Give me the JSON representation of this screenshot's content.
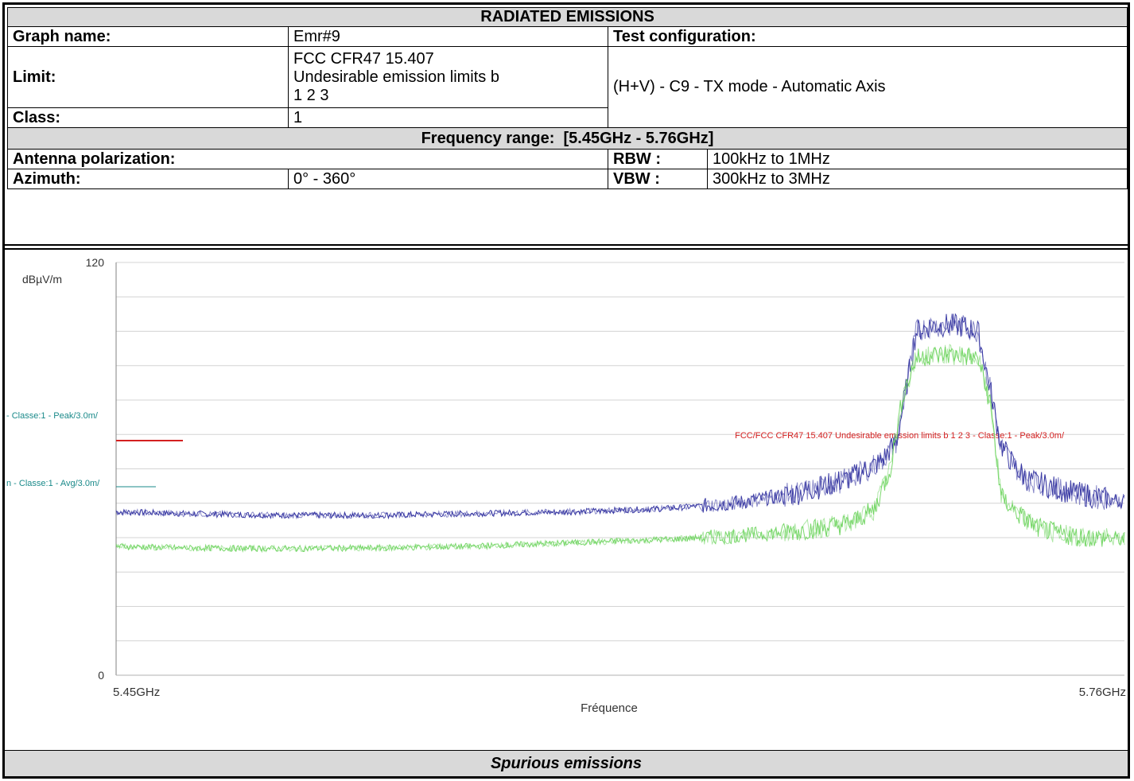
{
  "header": {
    "title": "RADIATED EMISSIONS",
    "graph_name_label": "Graph name:",
    "graph_name_value": "Emr#9",
    "test_config_label": "Test configuration:",
    "limit_label": "Limit:",
    "limit_value_lines": [
      "FCC CFR47 15.407",
      "Undesirable emission limits b",
      "1 2 3"
    ],
    "test_config_value": "(H+V) - C9 - TX mode - Automatic Axis",
    "class_label": "Class:",
    "class_value": "1",
    "freq_range_label": "Frequency range:",
    "freq_range_value": "[5.45GHz - 5.76GHz]",
    "antenna_label": "Antenna polarization:",
    "rbw_label": "RBW :",
    "rbw_value": "100kHz to 1MHz",
    "azimuth_label": "Azimuth:",
    "azimuth_value": "0° - 360°",
    "vbw_label": "VBW :",
    "vbw_value": "300kHz to 3MHz"
  },
  "footer": {
    "caption": "Spurious emissions"
  },
  "chart_data": {
    "type": "line",
    "title": "",
    "xlabel": "Fréquence",
    "ylabel": "dBµV/m",
    "xlim": [
      5.45,
      5.76
    ],
    "ylim": [
      0,
      120
    ],
    "x_tick_labels": [
      "5.45GHz",
      "5.76GHz"
    ],
    "y_tick_labels": [
      "120",
      "0"
    ],
    "grid": true,
    "limit_lines": [
      {
        "label": "FCC/FCC CFR47 15.407 Undesirable emission limits b 1 2 3 - Classe:1 - Peak/3.0m/",
        "left_label": "- Classe:1 - Peak/3.0m/",
        "value": 68.2,
        "color": "#d42020"
      },
      {
        "label": "",
        "left_label": "n - Classe:1 - Avg/3.0m/",
        "value": 54.0,
        "color": "#1a8a8a"
      }
    ],
    "series": [
      {
        "role": "peak",
        "color": "#2a2a9c",
        "x": [
          5.45,
          5.47,
          5.5,
          5.53,
          5.56,
          5.59,
          5.62,
          5.64,
          5.66,
          5.675,
          5.685,
          5.69,
          5.693,
          5.696,
          5.7,
          5.705,
          5.71,
          5.715,
          5.719,
          5.722,
          5.726,
          5.73,
          5.74,
          5.75,
          5.76
        ],
        "values": [
          47.5,
          47.0,
          46.5,
          46.5,
          47.0,
          47.5,
          48.5,
          50.0,
          53.0,
          57.0,
          62.0,
          68.0,
          84.0,
          100.0,
          101.5,
          101.8,
          101.5,
          100.0,
          82.0,
          67.0,
          61.0,
          57.0,
          54.0,
          52.0,
          50.5
        ]
      },
      {
        "role": "average",
        "color": "#6cd45c",
        "x": [
          5.45,
          5.47,
          5.5,
          5.53,
          5.56,
          5.59,
          5.62,
          5.64,
          5.66,
          5.675,
          5.683,
          5.688,
          5.692,
          5.696,
          5.7,
          5.705,
          5.71,
          5.715,
          5.719,
          5.722,
          5.727,
          5.733,
          5.74,
          5.75,
          5.76
        ],
        "values": [
          37.5,
          37.0,
          36.8,
          37.0,
          37.5,
          38.5,
          39.5,
          40.5,
          42.0,
          44.0,
          48.0,
          60.0,
          82.0,
          92.0,
          93.0,
          93.3,
          93.0,
          92.0,
          78.0,
          52.0,
          47.0,
          43.0,
          41.0,
          40.0,
          39.5
        ]
      }
    ]
  }
}
